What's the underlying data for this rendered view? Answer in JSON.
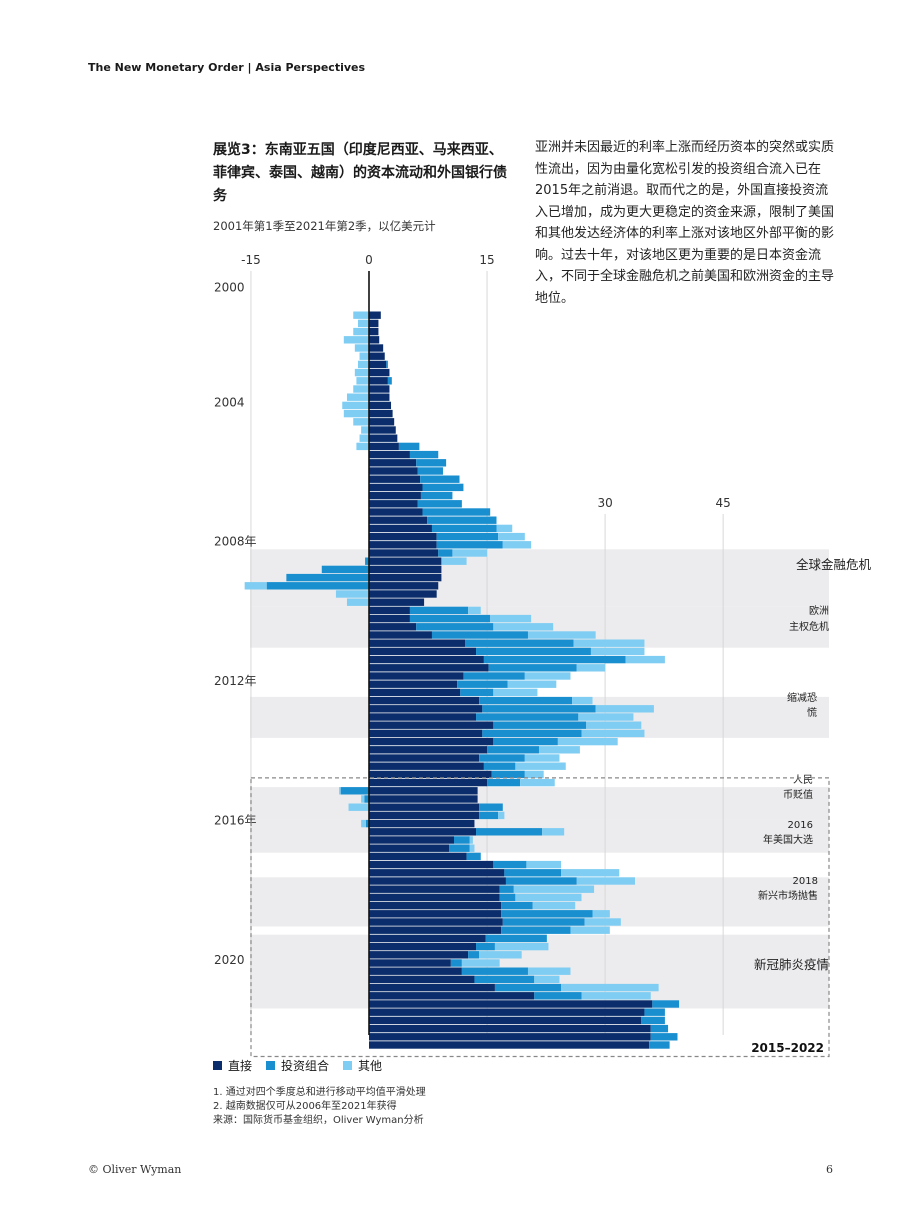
{
  "header": {
    "report_title": "The New Monetary Order | Asia Perspectives"
  },
  "exhibit": {
    "title": "展览3：东南亚五国（印度尼西亚、马来西亚、菲律宾、泰国、越南）的资本流动和外国银行债务",
    "subtitle": "2001年第1季至2021年第2季，以亿美元计"
  },
  "body_text": "亚洲并未因最近的利率上涨而经历资本的突然或实质性流出，因为由量化宽松引发的投资组合流入已在2015年之前消退。取而代之的是，外国直接投资流入已增加，成为更大更稳定的资金来源，限制了美国和其他发达经济体的利率上涨对该地区外部平衡的影响。过去十年，对该地区更为重要的是日本资金流入，不同于全球金融危机之前美国和欧洲资金的主导地位。",
  "legend": {
    "direct": "直接",
    "portfolio": "投资组合",
    "other": "其他"
  },
  "notes": [
    "1. 通过对四个季度总和进行移动平均值平滑处理",
    "2. 越南数据仅可从2006年至2021年获得",
    "来源：国际货币基金组织，Oliver Wyman分析"
  ],
  "footer": {
    "copyright": "© Oliver Wyman",
    "page": "6"
  },
  "colors": {
    "direct": "#0b2d6b",
    "portfolio": "#1a8fd0",
    "other": "#7fcdf2",
    "band": "#ececee",
    "grid": "#d8d8d8"
  },
  "chart_data": {
    "type": "bar",
    "orientation": "horizontal",
    "stacked": true,
    "title": "展览3：东南亚五国（印度尼西亚、马来西亚、菲律宾、泰国、越南）的资本流动和外国银行债务",
    "subtitle": "2001年第1季至2021年第2季，以亿美元计",
    "x_ticks_top": [
      "-15",
      "0",
      "15"
    ],
    "x_ticks_mid": [
      "30",
      "45"
    ],
    "xlim": [
      -16,
      58
    ],
    "year_labels": [
      {
        "label": "2000",
        "index": 0
      },
      {
        "label": "2004",
        "index": 14
      },
      {
        "label": "2008年",
        "index": 31
      },
      {
        "label": "2012年",
        "index": 48
      },
      {
        "label": "2016年",
        "index": 65
      },
      {
        "label": "2020",
        "index": 82
      }
    ],
    "events": [
      {
        "label": "全球金融危机",
        "start": 29,
        "end": 35
      },
      {
        "label": "欧洲主权危机",
        "start": 36,
        "end": 40
      },
      {
        "label": "缩减恐慌",
        "start": 47,
        "end": 51
      },
      {
        "label": "人民币贬值",
        "start": 58,
        "end": 61
      },
      {
        "label": "2016年美国大选",
        "start": 62,
        "end": 65
      },
      {
        "label": "2018新兴市场抛售",
        "start": 69,
        "end": 74
      },
      {
        "label": "新冠肺炎疫情",
        "start": 76,
        "end": 84
      }
    ],
    "highlight": {
      "label": "2015–2022",
      "start": 57,
      "end": 90
    },
    "series": [
      {
        "name": "直接",
        "values": [
          1.5,
          1.2,
          1.2,
          1.3,
          1.8,
          2.0,
          2.2,
          2.6,
          2.4,
          2.6,
          2.6,
          2.8,
          3.0,
          3.2,
          3.4,
          3.6,
          3.8,
          5.2,
          6.0,
          6.2,
          6.5,
          6.8,
          6.6,
          6.2,
          6.8,
          7.4,
          8.0,
          8.6,
          8.6,
          8.8,
          9.2,
          9.2,
          9.2,
          8.8,
          8.6,
          7.0,
          5.2,
          5.2,
          6.0,
          8.0,
          12.2,
          13.6,
          14.6,
          15.2,
          12.0,
          11.2,
          11.6,
          14.0,
          14.4,
          13.6,
          15.8,
          14.4,
          15.8,
          15.0,
          14.0,
          14.6,
          15.6,
          15.0,
          13.8,
          13.8,
          14.0,
          14.0,
          13.4,
          13.6,
          10.8,
          10.2,
          12.4,
          15.8,
          17.2,
          17.4,
          16.6,
          16.6,
          16.8,
          16.8,
          17.0,
          16.8,
          14.8,
          13.6,
          12.6,
          10.4,
          11.8,
          13.4,
          16.0,
          21.0,
          36.0,
          35.0,
          34.6,
          35.8,
          35.8,
          35.6
        ],
        "portfolio": [
          0,
          0,
          0,
          0,
          0,
          0,
          0.2,
          0,
          0.5,
          0,
          0,
          0,
          0,
          0,
          0,
          0,
          2.6,
          3.6,
          3.8,
          3.2,
          5.0,
          5.2,
          4.0,
          5.6,
          8.6,
          8.8,
          8.2,
          7.8,
          8.4,
          1.8,
          -0.5,
          -6.0,
          -10.5,
          -13.0,
          0,
          0,
          7.4,
          10.2,
          9.8,
          12.2,
          13.8,
          14.6,
          18.0,
          11.2,
          7.8,
          6.4,
          4.2,
          11.8,
          14.4,
          13.0,
          11.8,
          12.6,
          8.2,
          6.6,
          5.8,
          4.0,
          4.2,
          4.2,
          -3.6,
          -0.6,
          3.0,
          2.4,
          -0.4,
          8.4,
          2.0,
          2.6,
          1.8,
          4.2,
          7.2,
          9.0,
          1.8,
          2.0,
          4.0,
          11.6,
          10.4,
          8.8,
          7.8,
          2.4,
          1.4,
          1.4,
          8.4,
          7.6,
          8.4,
          6.0,
          3.4,
          2.6,
          3.0,
          2.2,
          3.4,
          2.6
        ],
        "other": [
          -2.0,
          -1.4,
          -2.0,
          -3.2,
          -1.8,
          -1.2,
          -1.4,
          -1.8,
          -1.6,
          -2.0,
          -2.8,
          -3.4,
          -3.2,
          -2.0,
          -1.0,
          -1.2,
          -1.6,
          0,
          0,
          0,
          0,
          0,
          0,
          0,
          0,
          0,
          2.0,
          3.4,
          3.6,
          4.4,
          3.2,
          0,
          0,
          -2.8,
          -4.2,
          -2.8,
          1.6,
          5.2,
          7.6,
          8.6,
          9.0,
          6.8,
          5.0,
          3.6,
          5.8,
          6.2,
          5.6,
          2.6,
          7.4,
          7.0,
          7.0,
          8.0,
          7.6,
          5.2,
          4.4,
          6.4,
          2.4,
          4.4,
          -0.2,
          -0.4,
          -2.6,
          0.8,
          -0.6,
          2.8,
          0.4,
          0.6,
          0,
          4.4,
          7.4,
          7.4,
          10.2,
          8.4,
          5.4,
          2.2,
          4.6,
          5.0,
          0,
          6.8,
          5.4,
          4.8,
          5.4,
          3.2,
          12.4,
          8.8,
          0,
          0,
          0,
          0,
          0,
          0
        ]
      }
    ]
  }
}
